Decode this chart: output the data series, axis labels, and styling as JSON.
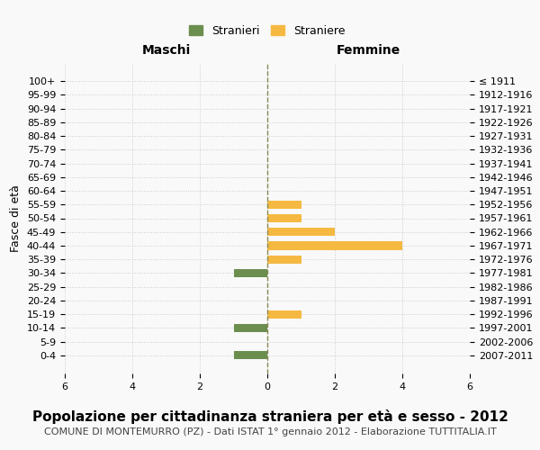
{
  "age_groups": [
    "0-4",
    "5-9",
    "10-14",
    "15-19",
    "20-24",
    "25-29",
    "30-34",
    "35-39",
    "40-44",
    "45-49",
    "50-54",
    "55-59",
    "60-64",
    "65-69",
    "70-74",
    "75-79",
    "80-84",
    "85-89",
    "90-94",
    "95-99",
    "100+"
  ],
  "birth_years": [
    "2007-2011",
    "2002-2006",
    "1997-2001",
    "1992-1996",
    "1987-1991",
    "1982-1986",
    "1977-1981",
    "1972-1976",
    "1967-1971",
    "1962-1966",
    "1957-1961",
    "1952-1956",
    "1947-1951",
    "1942-1946",
    "1937-1941",
    "1932-1936",
    "1927-1931",
    "1922-1926",
    "1917-1921",
    "1912-1916",
    "≤ 1911"
  ],
  "maschi": [
    -1,
    0,
    -1,
    0,
    0,
    0,
    -1,
    0,
    0,
    0,
    0,
    0,
    0,
    0,
    0,
    0,
    0,
    0,
    0,
    0,
    0
  ],
  "femmine": [
    0,
    0,
    0,
    1,
    0,
    0,
    0,
    1,
    4,
    2,
    1,
    1,
    0,
    0,
    0,
    0,
    0,
    0,
    0,
    0,
    0
  ],
  "maschi_color": "#6b8e4e",
  "femmine_color": "#f5b942",
  "background_color": "#f9f9f9",
  "grid_color": "#cccccc",
  "title": "Popolazione per cittadinanza straniera per età e sesso - 2012",
  "subtitle": "COMUNE DI MONTEMURRO (PZ) - Dati ISTAT 1° gennaio 2012 - Elaborazione TUTTITALIA.IT",
  "xlabel_left": "Maschi",
  "xlabel_right": "Femmine",
  "ylabel_left": "Fasce di età",
  "legend_maschi": "Stranieri",
  "legend_femmine": "Straniere",
  "xlim": 6,
  "bar_height": 0.6,
  "dashed_line_color": "#888855",
  "title_fontsize": 11,
  "subtitle_fontsize": 8,
  "axis_label_fontsize": 9,
  "tick_fontsize": 8,
  "header_fontsize": 10
}
